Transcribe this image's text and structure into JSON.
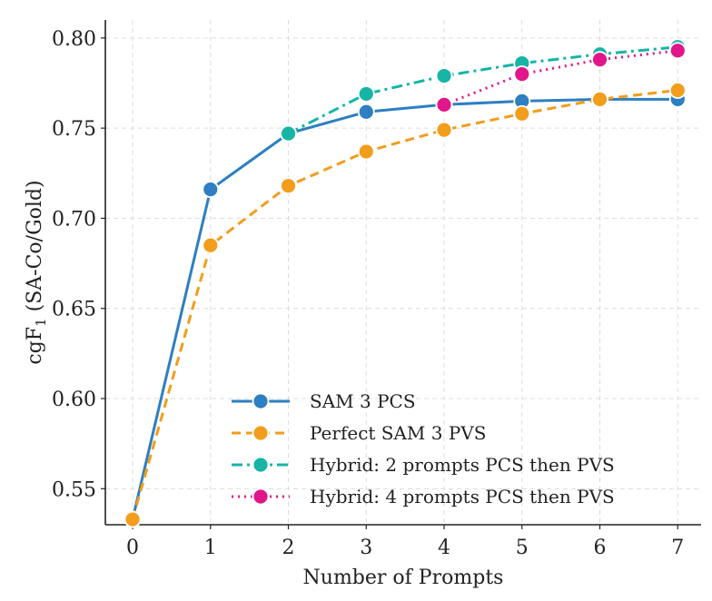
{
  "chart_data": {
    "type": "line",
    "title": "",
    "xlabel": "Number of Prompts",
    "ylabel_main": "cgF",
    "ylabel_sub": "1",
    "ylabel_rest": " (SA-Co/Gold)",
    "xlim": [
      -0.35,
      7.3
    ],
    "ylim": [
      0.53,
      0.81
    ],
    "x_ticks": [
      0,
      1,
      2,
      3,
      4,
      5,
      6,
      7
    ],
    "x_tick_labels": [
      "0",
      "1",
      "2",
      "3",
      "4",
      "5",
      "6",
      "7"
    ],
    "y_ticks": [
      0.55,
      0.6,
      0.65,
      0.7,
      0.75,
      0.8
    ],
    "y_tick_labels": [
      "0.55",
      "0.60",
      "0.65",
      "0.70",
      "0.75",
      "0.80"
    ],
    "grid": true,
    "legend_position": "lower-right",
    "series": [
      {
        "name": "SAM 3 PCS",
        "color": "#2d7fc1",
        "dash": "",
        "x": [
          0,
          1,
          2,
          3,
          4,
          5,
          6,
          7
        ],
        "values": [
          0.533,
          0.716,
          0.747,
          0.759,
          0.763,
          0.765,
          0.766,
          0.766
        ]
      },
      {
        "name": "Perfect SAM 3 PVS",
        "color": "#f29d1c",
        "dash": "10 6",
        "x": [
          0,
          1,
          2,
          3,
          4,
          5,
          6,
          7
        ],
        "values": [
          0.533,
          0.685,
          0.718,
          0.737,
          0.749,
          0.758,
          0.766,
          0.771
        ]
      },
      {
        "name": "Hybrid: 2 prompts PCS then PVS",
        "color": "#16b5a5",
        "dash": "12 5 3 5",
        "x": [
          2,
          3,
          4,
          5,
          6,
          7
        ],
        "values": [
          0.747,
          0.769,
          0.779,
          0.786,
          0.791,
          0.795
        ]
      },
      {
        "name": "Hybrid: 4 prompts PCS then PVS",
        "color": "#e0168a",
        "dash": "2 5",
        "x": [
          4,
          5,
          6,
          7
        ],
        "values": [
          0.763,
          0.78,
          0.788,
          0.793
        ]
      }
    ]
  }
}
